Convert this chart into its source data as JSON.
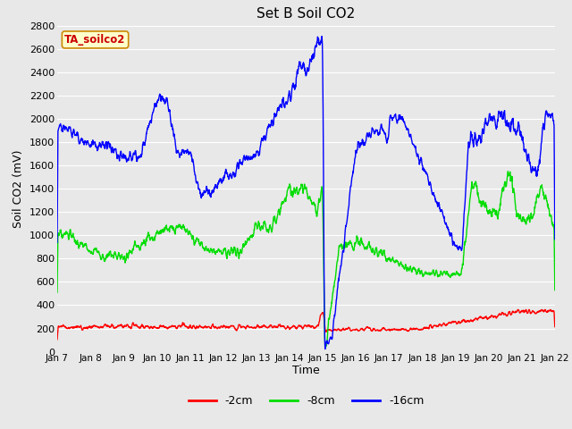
{
  "title": "Set B Soil CO2",
  "xlabel": "Time",
  "ylabel": "Soil CO2 (mV)",
  "ylim": [
    0,
    2800
  ],
  "yticks": [
    0,
    200,
    400,
    600,
    800,
    1000,
    1200,
    1400,
    1600,
    1800,
    2000,
    2200,
    2400,
    2600,
    2800
  ],
  "xtick_labels": [
    "Jan 7",
    "Jan 8",
    "Jan 9",
    "Jan 10",
    "Jan 11",
    "Jan 12",
    "Jan 13",
    "Jan 14",
    "Jan 15",
    "Jan 16",
    "Jan 17",
    "Jan 18",
    "Jan 19",
    "Jan 20",
    "Jan 21",
    "Jan 22"
  ],
  "colors": {
    "2cm": "#ff0000",
    "8cm": "#00dd00",
    "16cm": "#0000ff"
  },
  "legend_label": "TA_soilco2",
  "legend_box_facecolor": "#ffffcc",
  "legend_text_color": "#cc0000",
  "legend_box_edgecolor": "#cc8800",
  "bg_color": "#e8e8e8",
  "grid_color": "#ffffff",
  "line_width": 1.0
}
